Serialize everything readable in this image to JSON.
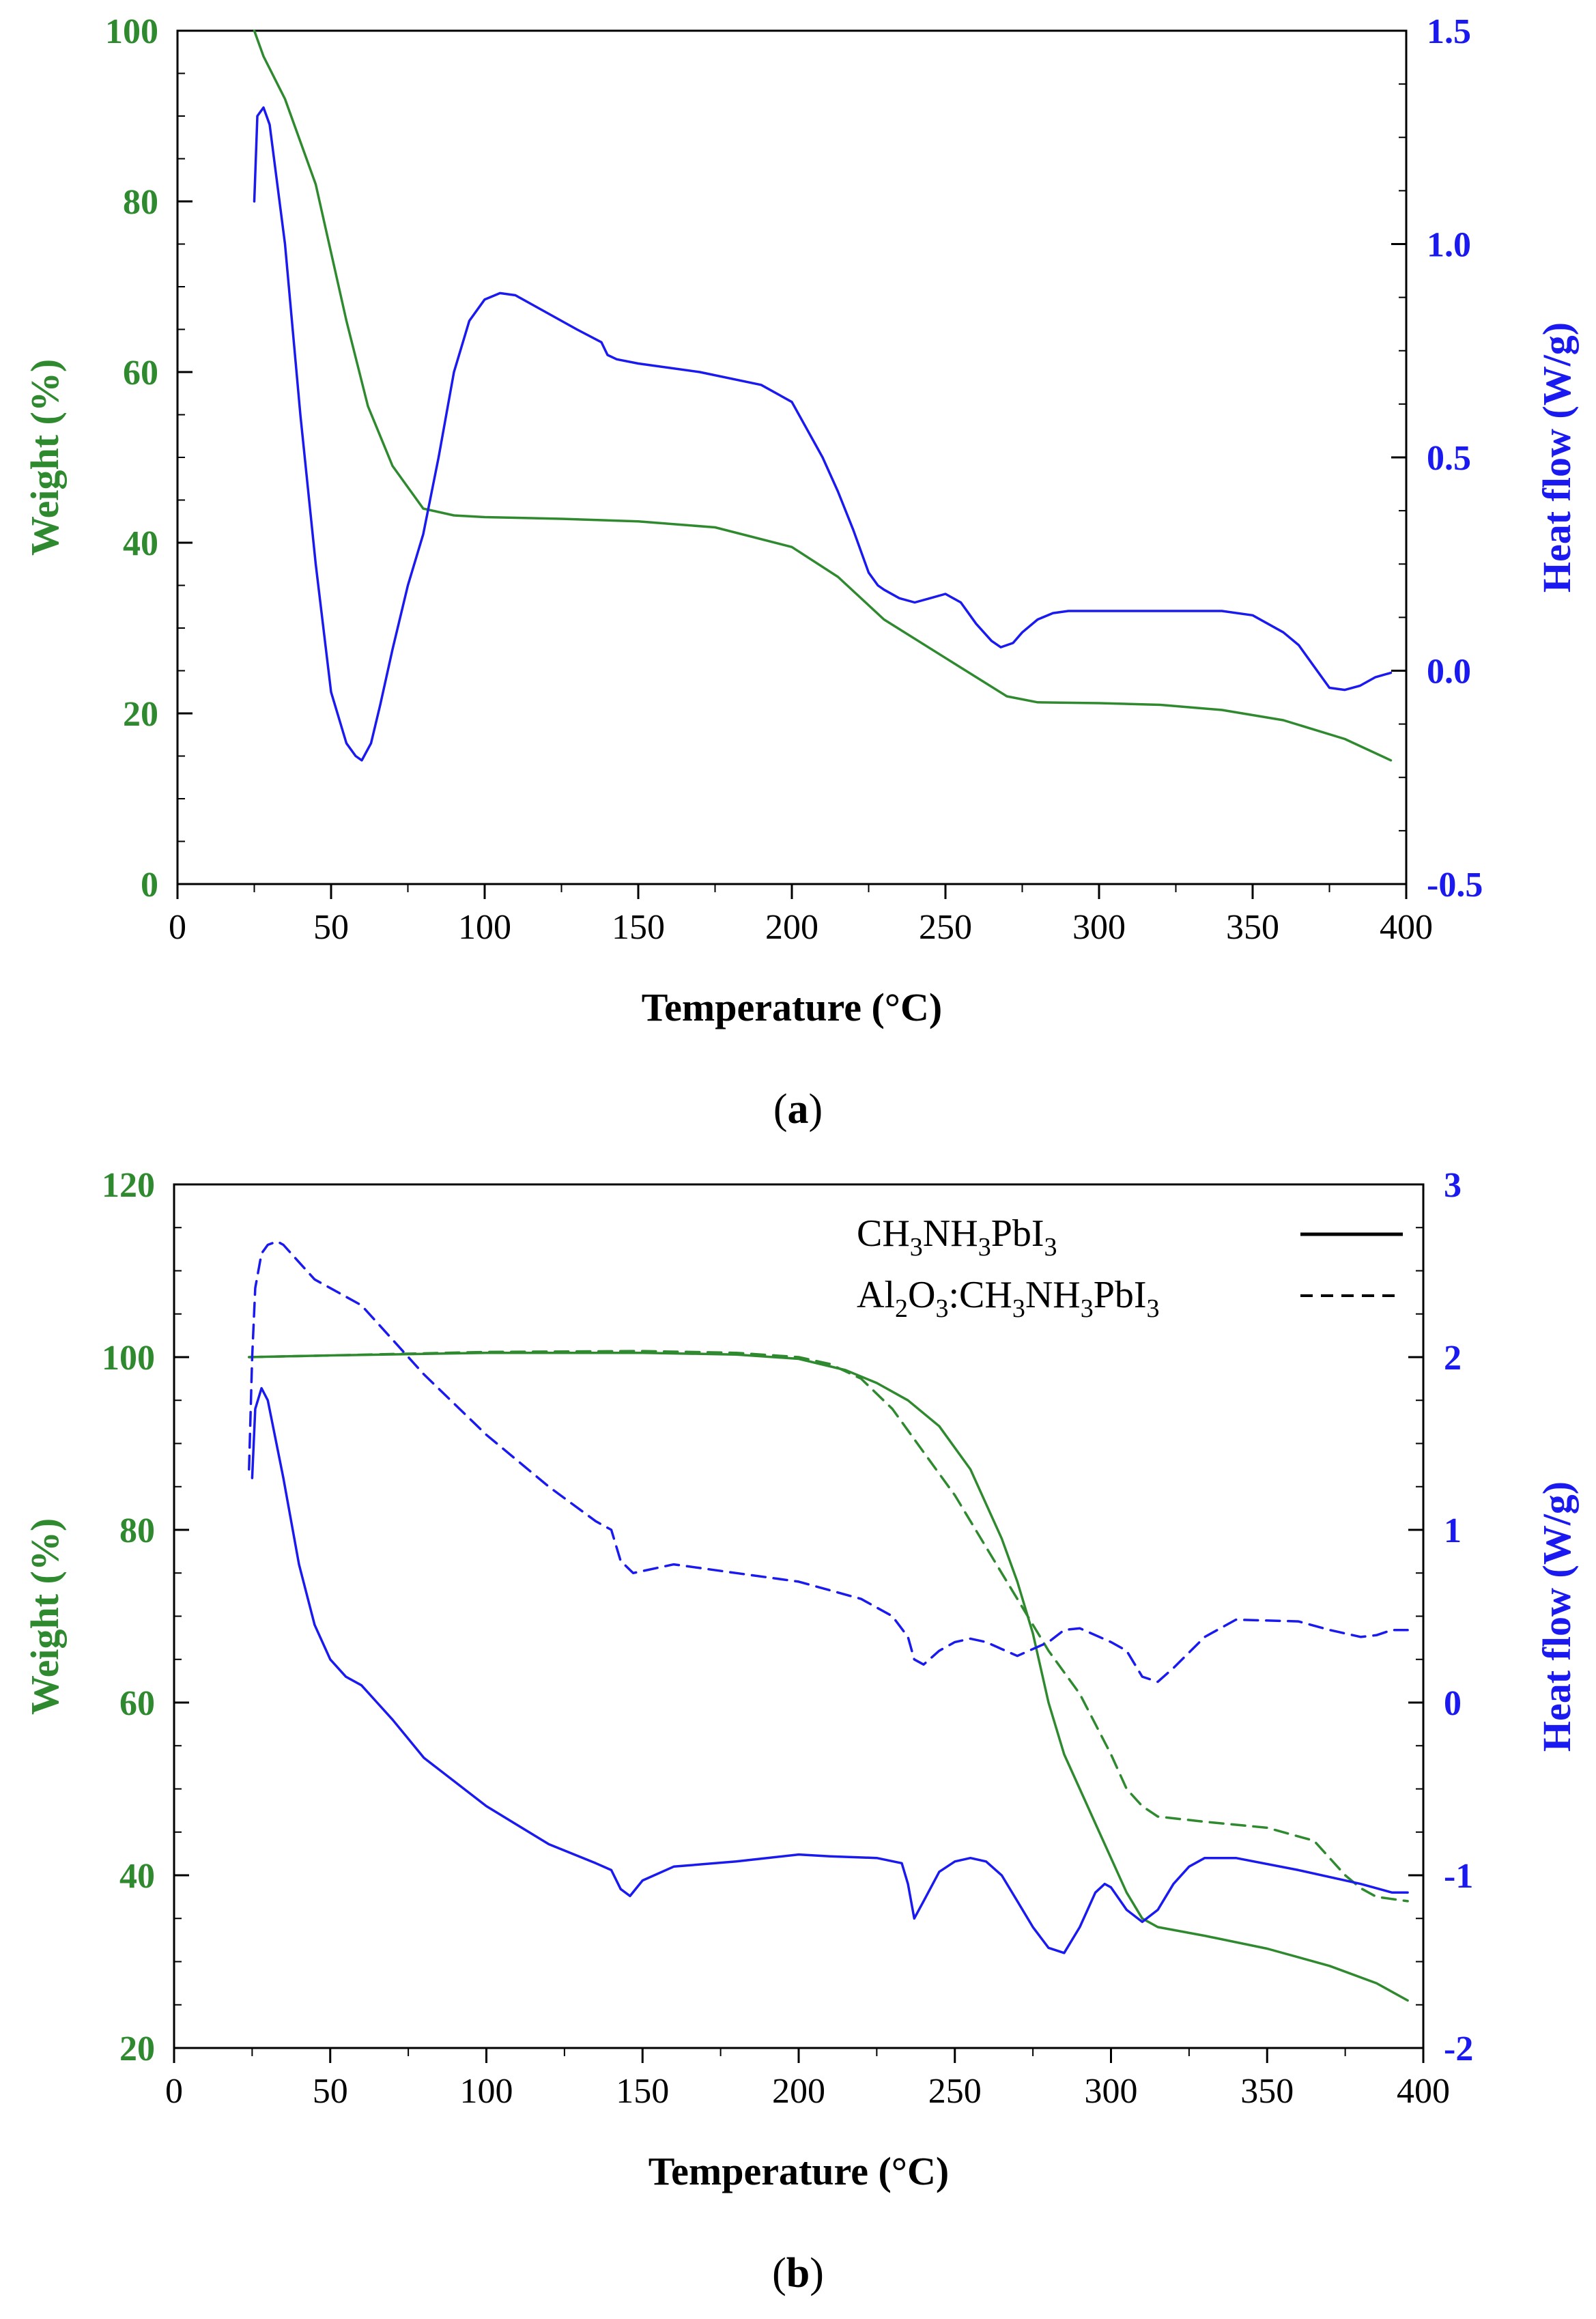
{
  "colors": {
    "weight": "#2f8a2f",
    "heat": "#1a1af0",
    "axis": "#000000"
  },
  "chart_data": [
    {
      "id": "a",
      "type": "line",
      "caption_open": "(",
      "caption_letter": "a",
      "caption_close": ")",
      "xlabel": "Temperature (°C)",
      "ylabel_left": "Weight (%)",
      "ylabel_right": "Heat flow (W/g)",
      "xlim": [
        0,
        400
      ],
      "ylim_left": [
        0,
        100
      ],
      "ylim_right": [
        -0.5,
        1.5
      ],
      "x_ticks": [
        "0",
        "50",
        "100",
        "150",
        "200",
        "250",
        "300",
        "350",
        "400"
      ],
      "y_left_ticks": [
        "0",
        "20",
        "40",
        "60",
        "80",
        "100"
      ],
      "y_right_ticks": [
        "-0.5",
        "0.0",
        "0.5",
        "1.0",
        "1.5"
      ],
      "series": [
        {
          "name": "Weight",
          "axis": "left",
          "style": "solid",
          "color": "#2f8a2f",
          "x": [
            25,
            28,
            35,
            45,
            55,
            62,
            70,
            80,
            90,
            100,
            125,
            150,
            175,
            200,
            215,
            230,
            250,
            270,
            280,
            300,
            320,
            340,
            360,
            380,
            395
          ],
          "y": [
            100,
            97,
            92,
            82,
            66,
            56,
            49,
            44,
            43.2,
            43,
            42.8,
            42.5,
            41.8,
            39.5,
            36,
            31,
            26.5,
            22,
            21.3,
            21.2,
            21,
            20.4,
            19.2,
            17,
            14.5
          ]
        },
        {
          "name": "Heat flow",
          "axis": "right",
          "style": "solid",
          "color": "#1a1af0",
          "x": [
            25,
            26,
            28,
            30,
            35,
            40,
            45,
            50,
            55,
            58,
            60,
            63,
            66,
            70,
            75,
            80,
            85,
            90,
            95,
            100,
            105,
            110,
            115,
            120,
            130,
            138,
            140,
            143,
            150,
            170,
            190,
            200,
            210,
            215,
            220,
            225,
            228,
            230,
            235,
            240,
            245,
            250,
            255,
            260,
            265,
            268,
            272,
            275,
            280,
            285,
            290,
            300,
            320,
            340,
            350,
            360,
            365,
            370,
            375,
            380,
            385,
            390,
            395
          ],
          "y": [
            1.1,
            1.3,
            1.32,
            1.28,
            1.0,
            0.6,
            0.25,
            -0.05,
            -0.17,
            -0.2,
            -0.21,
            -0.17,
            -0.08,
            0.05,
            0.2,
            0.32,
            0.5,
            0.7,
            0.82,
            0.87,
            0.885,
            0.88,
            0.86,
            0.84,
            0.8,
            0.77,
            0.74,
            0.73,
            0.72,
            0.7,
            0.67,
            0.63,
            0.5,
            0.42,
            0.33,
            0.23,
            0.2,
            0.19,
            0.17,
            0.16,
            0.17,
            0.18,
            0.16,
            0.11,
            0.07,
            0.055,
            0.065,
            0.09,
            0.12,
            0.135,
            0.14,
            0.14,
            0.14,
            0.14,
            0.13,
            0.09,
            0.06,
            0.01,
            -0.04,
            -0.045,
            -0.035,
            -0.015,
            -0.005
          ]
        }
      ]
    },
    {
      "id": "b",
      "type": "line",
      "caption_open": "(",
      "caption_letter": "b",
      "caption_close": ")",
      "xlabel": "Temperature (°C)",
      "ylabel_left": "Weight (%)",
      "ylabel_right": "Heat flow (W/g)",
      "xlim": [
        0,
        400
      ],
      "ylim_left": [
        20,
        120
      ],
      "ylim_right": [
        -2,
        3
      ],
      "x_ticks": [
        "0",
        "50",
        "100",
        "150",
        "200",
        "250",
        "300",
        "350",
        "400"
      ],
      "y_left_ticks": [
        "20",
        "40",
        "60",
        "80",
        "100",
        "120"
      ],
      "y_right_ticks": [
        "-2",
        "-1",
        "0",
        "1",
        "2",
        "3"
      ],
      "legend": {
        "position": "top-right",
        "entries": [
          {
            "base": "CH",
            "parts": [
              "CH",
              "3",
              "NH",
              "3",
              "PbI",
              "3"
            ],
            "style": "solid"
          },
          {
            "base": "Al",
            "parts": [
              "Al",
              "2",
              "O",
              "3",
              ":CH",
              "3",
              "NH",
              "3",
              "PbI",
              "3"
            ],
            "style": "dashed"
          }
        ]
      },
      "series": [
        {
          "name": "CH3NH3PbI3 weight",
          "axis": "left",
          "style": "solid",
          "color": "#2f8a2f",
          "x": [
            24,
            50,
            100,
            150,
            180,
            200,
            215,
            225,
            235,
            245,
            255,
            265,
            270,
            275,
            280,
            285,
            290,
            295,
            300,
            305,
            310,
            315,
            330,
            350,
            370,
            385,
            395
          ],
          "y": [
            100,
            100.2,
            100.5,
            100.5,
            100.3,
            99.8,
            98.5,
            97,
            95,
            92,
            87,
            79,
            74,
            68,
            60,
            54,
            50,
            46,
            42,
            38,
            35,
            34,
            33,
            31.5,
            29.5,
            27.5,
            25.5
          ]
        },
        {
          "name": "Al2O3:CH3NH3PbI3 weight",
          "axis": "left",
          "style": "dashed",
          "color": "#2f8a2f",
          "x": [
            24,
            50,
            100,
            150,
            180,
            200,
            210,
            220,
            230,
            240,
            250,
            260,
            270,
            280,
            290,
            300,
            305,
            310,
            315,
            330,
            350,
            365,
            375,
            380,
            385,
            395
          ],
          "y": [
            100,
            100.2,
            100.6,
            100.7,
            100.5,
            100,
            99.2,
            97.5,
            94,
            89,
            84,
            78,
            72,
            66,
            61,
            54,
            50,
            48,
            46.8,
            46.2,
            45.5,
            44,
            40,
            38.5,
            37.5,
            37
          ]
        },
        {
          "name": "CH3NH3PbI3 heat flow",
          "axis": "right",
          "style": "solid",
          "color": "#1a1af0",
          "x": [
            25,
            26,
            28,
            30,
            35,
            40,
            45,
            50,
            55,
            60,
            65,
            70,
            80,
            100,
            120,
            135,
            140,
            143,
            146,
            150,
            160,
            180,
            200,
            210,
            225,
            233,
            235,
            237,
            240,
            245,
            250,
            255,
            260,
            265,
            270,
            275,
            280,
            285,
            290,
            295,
            298,
            300,
            305,
            310,
            315,
            320,
            325,
            330,
            340,
            360,
            380,
            390,
            395
          ],
          "y": [
            1.3,
            1.7,
            1.82,
            1.75,
            1.3,
            0.8,
            0.45,
            0.25,
            0.15,
            0.1,
            0.0,
            -0.1,
            -0.32,
            -0.6,
            -0.82,
            -0.93,
            -0.97,
            -1.08,
            -1.12,
            -1.03,
            -0.95,
            -0.92,
            -0.88,
            -0.89,
            -0.9,
            -0.93,
            -1.05,
            -1.25,
            -1.15,
            -0.98,
            -0.92,
            -0.9,
            -0.92,
            -1.0,
            -1.15,
            -1.3,
            -1.42,
            -1.45,
            -1.3,
            -1.1,
            -1.05,
            -1.07,
            -1.2,
            -1.27,
            -1.2,
            -1.05,
            -0.95,
            -0.9,
            -0.9,
            -0.97,
            -1.05,
            -1.1,
            -1.1
          ]
        },
        {
          "name": "Al2O3:CH3NH3PbI3 heat flow",
          "axis": "right",
          "style": "dashed",
          "color": "#1a1af0",
          "x": [
            24,
            25,
            26,
            28,
            30,
            33,
            35,
            40,
            45,
            50,
            60,
            70,
            80,
            100,
            120,
            135,
            140,
            143,
            147,
            160,
            180,
            200,
            220,
            230,
            235,
            237,
            240,
            245,
            250,
            255,
            260,
            265,
            270,
            280,
            285,
            290,
            300,
            305,
            310,
            315,
            320,
            330,
            340,
            360,
            370,
            375,
            380,
            385,
            390,
            395
          ],
          "y": [
            1.35,
            2.0,
            2.4,
            2.6,
            2.65,
            2.67,
            2.65,
            2.55,
            2.45,
            2.4,
            2.3,
            2.1,
            1.9,
            1.55,
            1.25,
            1.05,
            1.0,
            0.82,
            0.75,
            0.8,
            0.75,
            0.7,
            0.6,
            0.5,
            0.38,
            0.25,
            0.22,
            0.3,
            0.35,
            0.37,
            0.35,
            0.31,
            0.27,
            0.35,
            0.42,
            0.43,
            0.35,
            0.3,
            0.15,
            0.12,
            0.2,
            0.38,
            0.48,
            0.47,
            0.42,
            0.4,
            0.38,
            0.39,
            0.42,
            0.42
          ]
        }
      ]
    }
  ]
}
